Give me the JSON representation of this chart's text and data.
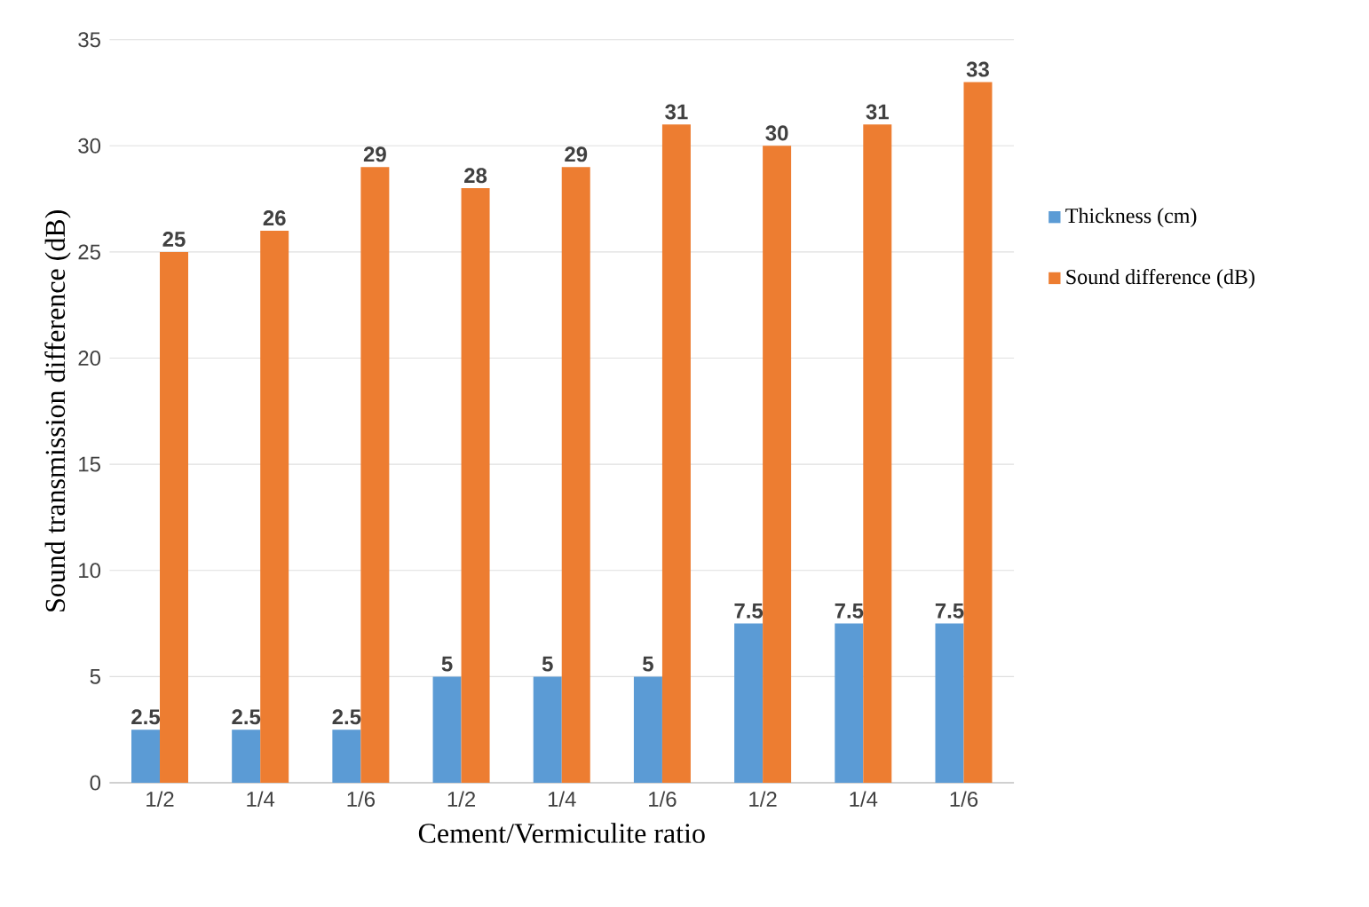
{
  "chart_data": {
    "type": "bar",
    "xlabel": "Cement/Vermiculite ratio",
    "ylabel": "Sound transmission difference (dB)",
    "categories": [
      "1/2",
      "1/4",
      "1/6",
      "1/2",
      "1/4",
      "1/6",
      "1/2",
      "1/4",
      "1/6"
    ],
    "series": [
      {
        "name": "Thickness (cm)",
        "color": "#5b9bd5",
        "values": [
          2.5,
          2.5,
          2.5,
          5,
          5,
          5,
          7.5,
          7.5,
          7.5
        ]
      },
      {
        "name": "Sound difference (dB)",
        "color": "#ed7d31",
        "values": [
          25,
          26,
          29,
          28,
          29,
          31,
          30,
          31,
          33
        ]
      }
    ],
    "ylim": [
      0,
      35
    ],
    "yticks": [
      0,
      5,
      10,
      15,
      20,
      25,
      30,
      35
    ],
    "grid": "y",
    "legend": "right",
    "data_labels": true
  }
}
